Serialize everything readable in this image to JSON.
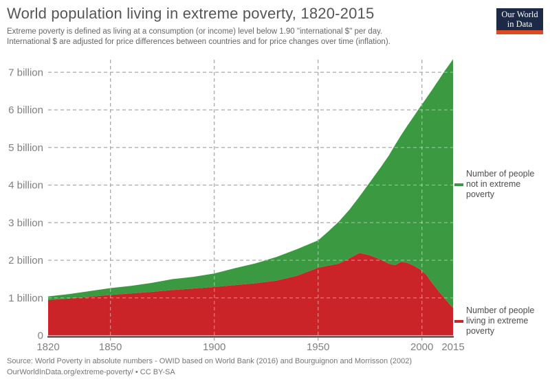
{
  "chart_data": {
    "type": "area",
    "stacked": true,
    "title": "World population living in extreme poverty, 1820-2015",
    "subtitle_lines": [
      "Extreme poverty is defined as living at a consumption (or income) level below 1.90 \"international $\" per day.",
      "International $ are adjusted for price differences between countries and for price changes over time (inflation)."
    ],
    "source_lines": [
      "Source: World Poverty in absolute numbers - OWID based on World Bank (2016) and Bourguignon and Morrisson (2002)",
      "OurWorldInData.org/extreme-poverty/ • CC BY-SA"
    ],
    "x": [
      1820,
      1830,
      1840,
      1850,
      1860,
      1870,
      1880,
      1890,
      1900,
      1910,
      1920,
      1930,
      1940,
      1950,
      1955,
      1960,
      1965,
      1970,
      1975,
      1980,
      1984,
      1987,
      1990,
      1993,
      1996,
      1999,
      2002,
      2005,
      2008,
      2011,
      2013,
      2015
    ],
    "series": [
      {
        "name": "Number of people living in extreme poverty",
        "color": "#cb2428",
        "unit": "billion",
        "values": [
          0.94,
          0.98,
          1.03,
          1.08,
          1.12,
          1.16,
          1.21,
          1.25,
          1.29,
          1.34,
          1.39,
          1.46,
          1.59,
          1.8,
          1.86,
          1.91,
          2.05,
          2.2,
          2.13,
          2.02,
          1.91,
          1.87,
          1.96,
          1.93,
          1.86,
          1.76,
          1.62,
          1.39,
          1.18,
          0.98,
          0.85,
          0.73
        ]
      },
      {
        "name": "Number of people not in extreme poverty",
        "color": "#3b9a41",
        "unit": "billion",
        "values": [
          0.1,
          0.12,
          0.15,
          0.18,
          0.2,
          0.24,
          0.29,
          0.31,
          0.36,
          0.45,
          0.53,
          0.63,
          0.71,
          0.73,
          0.91,
          1.12,
          1.29,
          1.5,
          1.95,
          2.44,
          2.87,
          3.19,
          3.37,
          3.65,
          3.96,
          4.31,
          4.68,
          5.15,
          5.61,
          6.06,
          6.34,
          6.62
        ]
      }
    ],
    "y_ticks": [
      "0",
      "1 billion",
      "2 billion",
      "3 billion",
      "4 billion",
      "5 billion",
      "6 billion",
      "7 billion"
    ],
    "x_ticks": [
      1820,
      1850,
      1900,
      1950,
      2000,
      2015
    ],
    "grid_years": [
      1850,
      1900,
      1950,
      2000
    ],
    "xlim": [
      1820,
      2015
    ],
    "ylim": [
      0,
      7.4
    ],
    "grid": true,
    "legend_position": "right",
    "legend": [
      {
        "color": "#3b9a41",
        "lines": [
          "Number of people",
          "not in extreme",
          "poverty"
        ]
      },
      {
        "color": "#cb2428",
        "lines": [
          "Number of people",
          "living in extreme",
          "poverty"
        ]
      }
    ],
    "axis_color": "#2e2e2e",
    "gridline_color": "#a9a9a9"
  },
  "logo": {
    "line1": "Our World",
    "line2": "in Data",
    "bg_color": "#1c2a48",
    "bar_color": "#dd4a22"
  }
}
